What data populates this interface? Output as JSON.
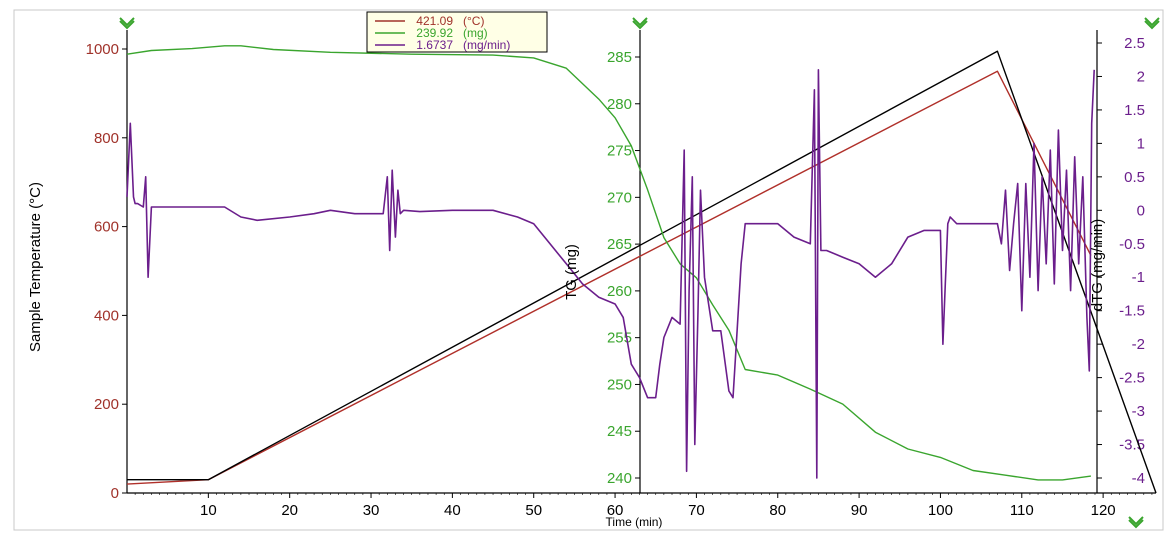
{
  "chart_data": {
    "type": "line",
    "xlabel": "Time (min)",
    "x_ticks": [
      10,
      20,
      30,
      40,
      50,
      60,
      70,
      80,
      90,
      100,
      110,
      120
    ],
    "xlim": [
      0,
      126.5
    ],
    "axes": {
      "temperature": {
        "label": "Sample Temperature (°C)",
        "ticks": [
          0,
          200,
          400,
          600,
          800,
          1000
        ],
        "ylim": [
          0,
          1000
        ],
        "color": "#a0322a"
      },
      "tg": {
        "label": "TG (mg)",
        "ticks": [
          240,
          245,
          250,
          255,
          260,
          265,
          270,
          275,
          280,
          285
        ],
        "ylim": [
          238,
          287.5
        ],
        "color": "#3aa52e"
      },
      "dtg": {
        "label": "dTG (mg/min)",
        "ticks": [
          "2.5",
          "2",
          "1.5",
          "1",
          "0.5",
          "0",
          "-0.5",
          "-1",
          "-1.5",
          "-2",
          "-2.5",
          "-3",
          "-3.5",
          "-4"
        ],
        "ylim": [
          -4,
          2.5
        ],
        "color": "#6b1e8c"
      }
    },
    "legend": {
      "placement": "top-center",
      "entries": [
        {
          "value": "421.09",
          "unit": "(°C)",
          "color": "#a0322a"
        },
        {
          "value": "239.92",
          "unit": "(mg)",
          "color": "#3aa52e"
        },
        {
          "value": "1.6737",
          "unit": "(mg/min)",
          "color": "#6b1e8c"
        }
      ]
    },
    "series": [
      {
        "axis": "temperature",
        "color": "#b0302a",
        "x": [
          0,
          10,
          107,
          118.5
        ],
        "y": [
          20,
          30,
          950,
          535
        ]
      },
      {
        "axis": "temperature",
        "color": "#000000",
        "x": [
          0,
          10,
          107,
          126.5
        ],
        "y": [
          30,
          30,
          995,
          0
        ]
      },
      {
        "axis": "tg",
        "color": "#3aa52e",
        "x": [
          0,
          3,
          8,
          12,
          14,
          18,
          25,
          35,
          45,
          50,
          54,
          58,
          60,
          62,
          64,
          66,
          68,
          70,
          72,
          74,
          76,
          80,
          84,
          88,
          92,
          96,
          100,
          104,
          108,
          112,
          115,
          118.5
        ],
        "y": [
          285.3,
          285.7,
          285.9,
          286.2,
          286.2,
          285.8,
          285.5,
          285.3,
          285.2,
          284.9,
          283.8,
          280.5,
          278.5,
          275.5,
          270.8,
          265.7,
          262.9,
          261.4,
          258.5,
          255.8,
          251.6,
          251,
          249.5,
          247.9,
          244.9,
          243.1,
          242.2,
          240.8,
          240.3,
          239.8,
          239.8,
          240.2
        ]
      },
      {
        "axis": "dtg",
        "color": "#6b1e8c",
        "x": [
          0,
          0.4,
          0.8,
          1,
          1.3,
          2,
          2.3,
          2.6,
          3,
          5,
          8,
          10,
          12,
          14,
          16,
          20,
          23,
          25,
          28,
          31.5,
          32,
          32.3,
          32.6,
          33,
          33.3,
          33.6,
          34,
          36,
          40,
          45,
          48,
          50,
          52,
          54,
          56,
          58,
          60,
          61,
          62,
          63,
          64,
          65,
          65.5,
          66,
          67,
          68,
          68.5,
          68.8,
          69.1,
          69.5,
          69.8,
          70.2,
          70.5,
          71,
          72,
          73,
          74,
          74.5,
          75,
          75.5,
          76,
          77,
          80,
          82,
          84,
          84.5,
          84.8,
          85,
          85.3,
          85.6,
          86,
          88,
          90,
          92,
          94,
          96,
          98,
          100,
          100.3,
          100.6,
          100.9,
          101.2,
          102,
          104,
          106,
          107,
          107.5,
          108,
          108.5,
          109,
          109.5,
          110,
          110.5,
          111,
          111.5,
          112,
          112.5,
          113,
          113.5,
          114,
          114.5,
          115,
          115.5,
          116,
          116.5,
          117,
          117.5,
          118,
          118.3,
          118.6,
          118.9
        ],
        "y": [
          0.2,
          1.3,
          0.2,
          0.1,
          0.1,
          0.05,
          0.5,
          -1,
          0.05,
          0.05,
          0.05,
          0.05,
          0.05,
          -0.1,
          -0.15,
          -0.1,
          -0.05,
          0,
          -0.05,
          -0.05,
          0.5,
          -0.6,
          0.6,
          -0.4,
          0.3,
          -0.05,
          0,
          -0.02,
          0,
          0,
          -0.1,
          -0.2,
          -0.5,
          -0.8,
          -1.1,
          -1.3,
          -1.4,
          -1.6,
          -2.3,
          -2.5,
          -2.8,
          -2.8,
          -2.3,
          -1.9,
          -1.6,
          -1.7,
          0.9,
          -3.9,
          -1.2,
          0.5,
          -3.5,
          -1.5,
          0.3,
          -1.0,
          -1.8,
          -1.8,
          -2.7,
          -2.8,
          -1.8,
          -0.8,
          -0.2,
          -0.2,
          -0.2,
          -0.4,
          -0.5,
          1.8,
          -4,
          2.1,
          -0.6,
          -0.6,
          -0.6,
          -0.7,
          -0.8,
          -1.0,
          -0.8,
          -0.4,
          -0.3,
          -0.3,
          -2.0,
          -1.1,
          -0.2,
          -0.1,
          -0.2,
          -0.2,
          -0.2,
          -0.2,
          -0.5,
          0.3,
          -0.9,
          -0.2,
          0.4,
          -1.5,
          0.4,
          -1.0,
          1.0,
          -1.2,
          0.5,
          -0.8,
          0.9,
          -1.1,
          1.2,
          -0.6,
          0.6,
          -1.2,
          0.8,
          -0.8,
          0.5,
          -1.6,
          -2.4,
          1.3,
          2.1
        ]
      }
    ]
  }
}
